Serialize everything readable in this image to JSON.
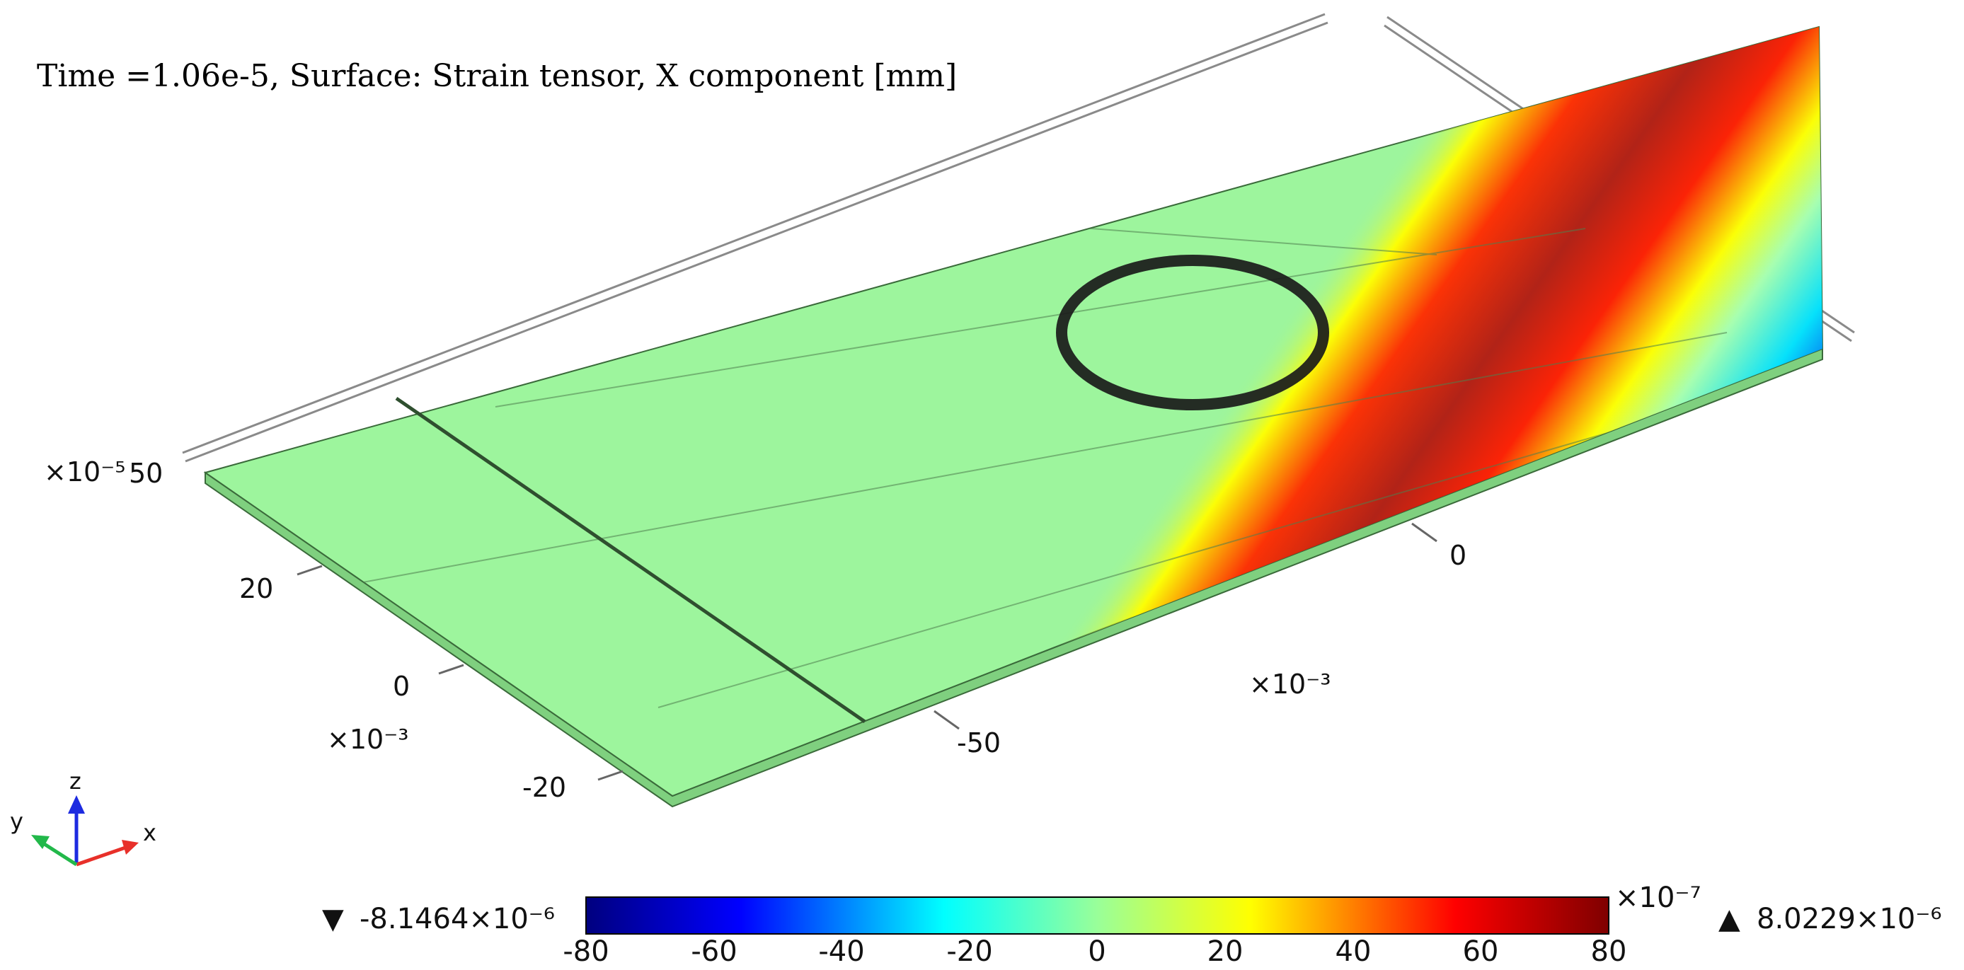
{
  "title": "Time =1.06e-5,  Surface: Strain tensor, X component [mm]",
  "axes": {
    "y_ticks": [
      "20",
      "0",
      "-20"
    ],
    "y_exponent": "×10⁻³",
    "x_ticks": [
      "-50",
      "0"
    ],
    "x_exponent": "×10⁻³",
    "z_exponent": "×10⁻⁵",
    "z_tick": "50"
  },
  "triad": {
    "x_label": "x",
    "y_label": "y",
    "z_label": "z",
    "colors": {
      "x": "#e8302a",
      "y": "#22b84a",
      "z": "#1d2be0"
    }
  },
  "colorbar": {
    "ticks": [
      "-80",
      "-60",
      "-40",
      "-20",
      "0",
      "20",
      "40",
      "60",
      "80"
    ],
    "exponent": "×10⁻⁷",
    "min_marker": "▼",
    "min_value": "-8.1464×10⁻⁶",
    "max_marker": "▲",
    "max_value": "8.0229×10⁻⁶",
    "colormap": [
      "#00007f",
      "#0000ff",
      "#00ffff",
      "#99ff99",
      "#ffff00",
      "#ff0000",
      "#7f0000"
    ]
  },
  "surface": {
    "base_color": "#9df59d",
    "ring_color": "#1a1a1a"
  }
}
